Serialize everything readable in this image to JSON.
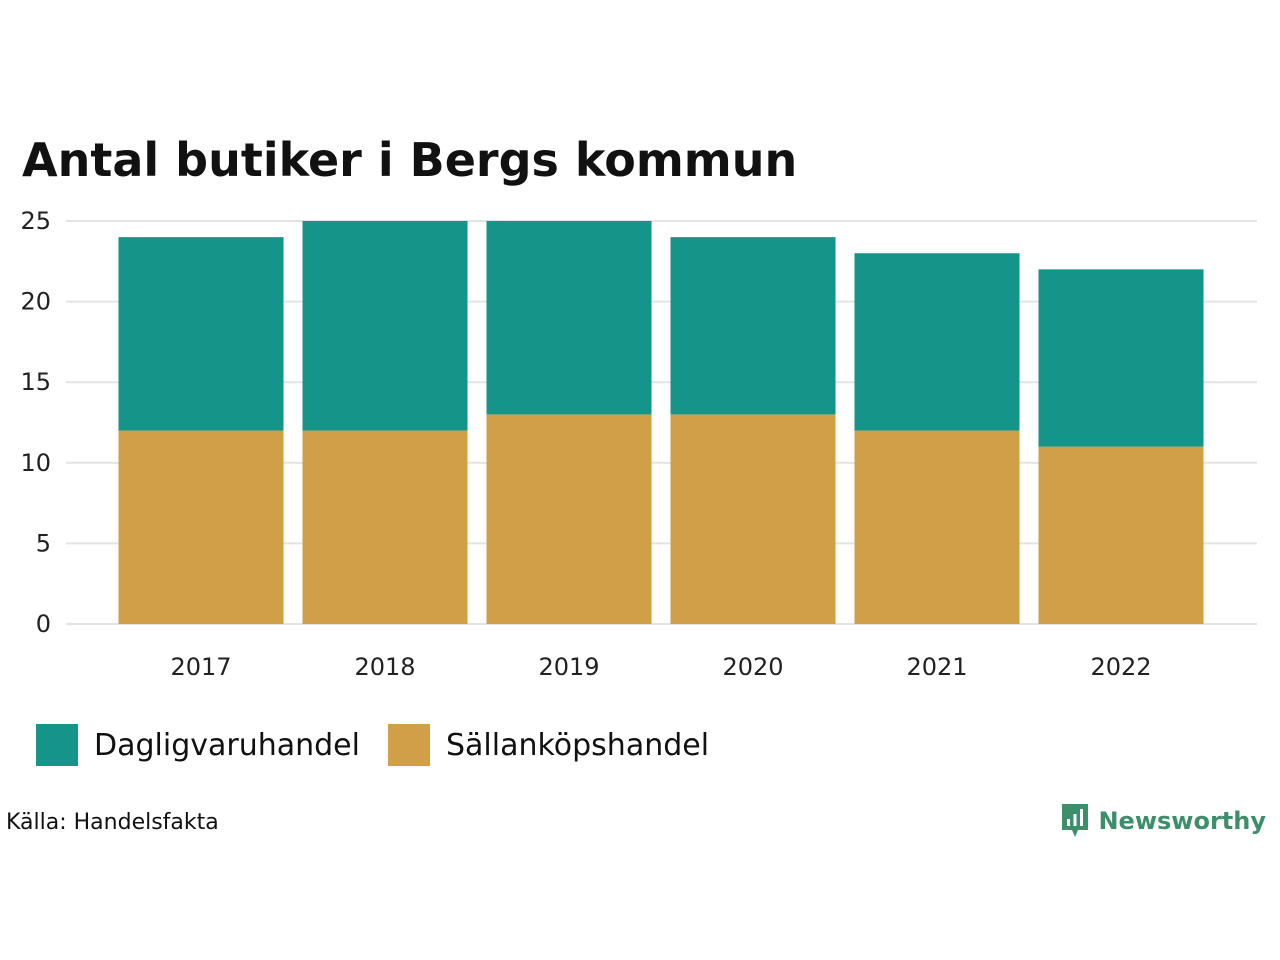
{
  "chart_data": {
    "type": "bar",
    "stacked": true,
    "title": "Antal butiker i Bergs kommun",
    "categories": [
      "2017",
      "2018",
      "2019",
      "2020",
      "2021",
      "2022"
    ],
    "series": [
      {
        "name": "Sällanköpshandel",
        "color": "#d19f47",
        "values": [
          12,
          12,
          13,
          13,
          12,
          11
        ]
      },
      {
        "name": "Dagligvaruhandel",
        "color": "#15958a",
        "values": [
          12,
          13,
          12,
          11,
          11,
          11
        ]
      }
    ],
    "yticks": [
      0,
      5,
      10,
      15,
      20,
      25
    ],
    "ylim": [
      0,
      25
    ],
    "xlabel": "",
    "ylabel": "",
    "grid": true,
    "legend_position": "bottom-left"
  },
  "legend": [
    {
      "label": "Dagligvaruhandel",
      "color": "#15958a"
    },
    {
      "label": "Sällanköpshandel",
      "color": "#d19f47"
    }
  ],
  "source": "Källa: Handelsfakta",
  "brand": {
    "name": "Newsworthy",
    "color": "#3d8f6c"
  }
}
